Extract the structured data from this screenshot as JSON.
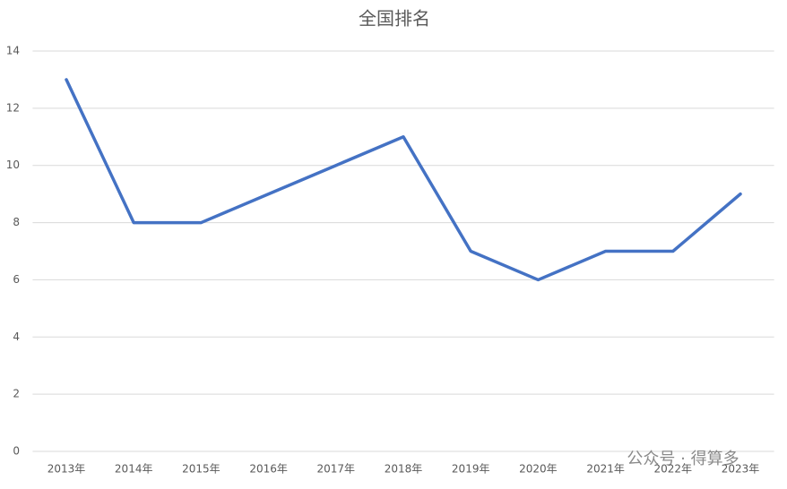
{
  "chart_data": {
    "type": "line",
    "title": "全国排名",
    "categories": [
      "2013年",
      "2014年",
      "2015年",
      "2016年",
      "2017年",
      "2018年",
      "2019年",
      "2020年",
      "2021年",
      "2022年",
      "2023年"
    ],
    "series": [
      {
        "color": "#4472c4",
        "values": [
          13,
          8,
          8,
          9,
          10,
          11,
          7,
          6,
          7,
          7,
          9
        ]
      }
    ],
    "ylim": [
      0,
      14
    ],
    "yticks": [
      0,
      2,
      4,
      6,
      8,
      10,
      12,
      14
    ],
    "grid": true,
    "watermark": "公众号 · 得算多"
  }
}
